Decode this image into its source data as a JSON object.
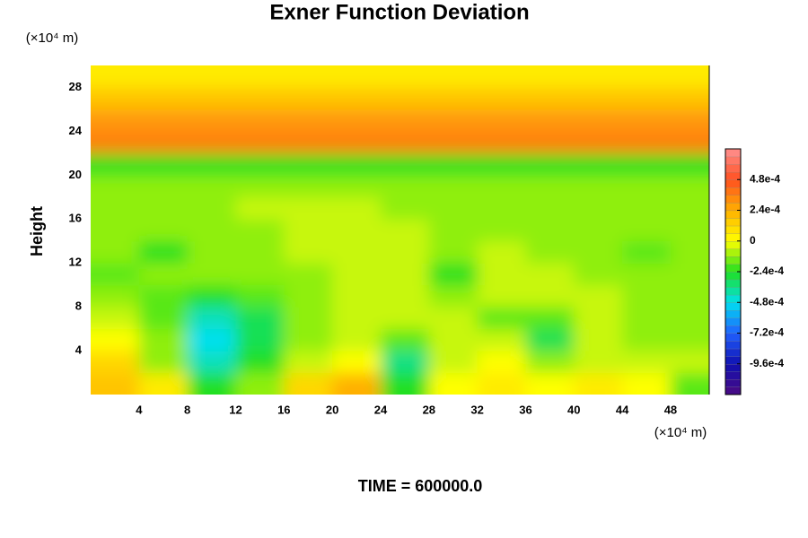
{
  "chart_data": {
    "type": "contour",
    "title": "Exner Function Deviation",
    "x_unit": "(×10⁴ m)",
    "y_unit": "(×10⁴ m)",
    "ylabel": "Height",
    "footer": "TIME = 600000.0",
    "xlim": [
      0,
      51.2
    ],
    "ylim": [
      0,
      30
    ],
    "xticks": [
      4,
      8,
      12,
      16,
      20,
      24,
      28,
      32,
      36,
      40,
      44,
      48
    ],
    "yticks": [
      4,
      8,
      12,
      16,
      20,
      24,
      28
    ],
    "x": [
      2,
      6,
      10,
      14,
      18,
      22,
      26,
      30,
      34,
      38,
      42,
      46,
      50
    ],
    "y": [
      1,
      3,
      5,
      7,
      9,
      11,
      13,
      15,
      17,
      19,
      21,
      23,
      25,
      27,
      29
    ],
    "z": [
      [
        0.00018,
        6e-05,
        -0.00024,
        -0.00012,
        0.00012,
        0.00024,
        -0.00024,
        0,
        6e-05,
        0,
        6e-05,
        0,
        -0.00018
      ],
      [
        0.00012,
        -0.00012,
        -0.00042,
        -0.00024,
        -6e-05,
        0,
        -0.00036,
        -6e-05,
        0,
        -0.00012,
        -6e-05,
        -6e-05,
        -6e-05
      ],
      [
        0,
        -0.00012,
        -0.00048,
        -0.0003,
        -0.00012,
        -6e-05,
        -0.00018,
        -6e-05,
        -6e-05,
        -0.0003,
        -6e-05,
        -0.00012,
        -0.00012
      ],
      [
        -6e-05,
        -0.00018,
        -0.00042,
        -0.0003,
        -0.00012,
        -6e-05,
        -6e-05,
        -6e-05,
        -0.00018,
        -0.00018,
        -6e-05,
        -0.00012,
        -0.00012
      ],
      [
        -0.00012,
        -0.00018,
        -0.00024,
        -0.00018,
        -0.00012,
        -6e-05,
        -6e-05,
        -0.00012,
        -6e-05,
        -6e-05,
        -6e-05,
        -0.00012,
        -0.00012
      ],
      [
        -0.00018,
        -0.00012,
        -0.00012,
        -0.00012,
        -0.00012,
        -6e-05,
        -6e-05,
        -0.00024,
        -6e-05,
        -6e-05,
        -0.00012,
        -0.00012,
        -0.00012
      ],
      [
        -0.00012,
        -0.00024,
        -0.00012,
        -0.00012,
        -6e-05,
        -6e-05,
        -6e-05,
        -0.00012,
        -6e-05,
        -0.00012,
        -0.00012,
        -0.00018,
        -0.00012
      ],
      [
        -0.00012,
        -0.00012,
        -0.00012,
        -0.00012,
        -6e-05,
        -6e-05,
        -6e-05,
        -0.00012,
        -0.00012,
        -0.00012,
        -0.00012,
        -0.00012,
        -0.00012
      ],
      [
        -0.00012,
        -0.00012,
        -0.00012,
        -6e-05,
        -6e-05,
        -6e-05,
        -0.00012,
        -0.00012,
        -0.00012,
        -0.00012,
        -0.00012,
        -0.00012,
        -0.00012
      ],
      [
        -0.00012,
        -0.00012,
        -0.00012,
        -0.00012,
        -0.00012,
        -0.00012,
        -0.00012,
        -0.00012,
        -0.00012,
        -0.00012,
        -0.00012,
        -0.00012,
        -0.00012
      ],
      [
        -0.00024,
        -0.00024,
        -0.00024,
        -0.00024,
        -0.00024,
        -0.00024,
        -0.00024,
        -0.00024,
        -0.00024,
        -0.00024,
        -0.00024,
        -0.00024,
        -0.00024
      ],
      [
        0.00036,
        0.00036,
        0.00036,
        0.00036,
        0.00036,
        0.00036,
        0.00036,
        0.00036,
        0.00036,
        0.00036,
        0.00036,
        0.00036,
        0.00036
      ],
      [
        0.0003,
        0.0003,
        0.0003,
        0.0003,
        0.0003,
        0.0003,
        0.0003,
        0.0003,
        0.0003,
        0.0003,
        0.0003,
        0.0003,
        0.0003
      ],
      [
        0.00018,
        0.00018,
        0.00018,
        0.00018,
        0.00018,
        0.00018,
        0.00018,
        0.00018,
        0.00018,
        0.00018,
        0.00018,
        0.00018,
        0.00018
      ],
      [
        6e-05,
        6e-05,
        6e-05,
        6e-05,
        6e-05,
        6e-05,
        6e-05,
        6e-05,
        6e-05,
        6e-05,
        6e-05,
        6e-05,
        6e-05
      ]
    ],
    "clim": [
      -0.0012,
      0.00072
    ],
    "cticks": [
      {
        "value": 0.00048,
        "label": "4.8e-4"
      },
      {
        "value": 0.00024,
        "label": "2.4e-4"
      },
      0,
      {
        "value": -0.00024,
        "label": "-2.4e-4"
      },
      {
        "value": -0.00048,
        "label": "-4.8e-4"
      },
      {
        "value": -0.00072,
        "label": "-7.2e-4"
      },
      {
        "value": -0.00096,
        "label": "-9.6e-4"
      }
    ],
    "colorscale": [
      "#4b0a82",
      "#1010b0",
      "#2060ff",
      "#00e0f0",
      "#20e020",
      "#ffff00",
      "#ffb000",
      "#ff5020",
      "#ff9090"
    ]
  }
}
